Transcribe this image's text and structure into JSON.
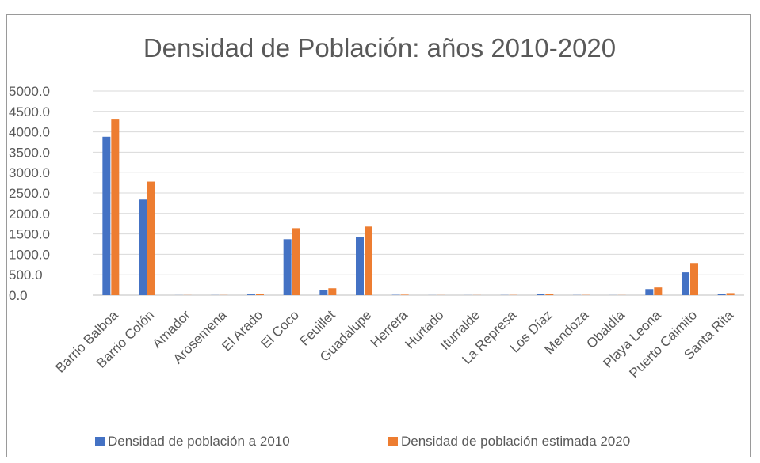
{
  "chart_data": {
    "type": "bar",
    "title": "Densidad de Población: años 2010-2020",
    "xlabel": "",
    "ylabel": "",
    "ylim": [
      0,
      5000
    ],
    "yticks": [
      "0.0",
      "500.0",
      "1000.0",
      "1500.0",
      "2000.0",
      "2500.0",
      "3000.0",
      "3500.0",
      "4000.0",
      "4500.0",
      "5000.0"
    ],
    "grid": true,
    "legend_position": "bottom",
    "categories": [
      "Barrio Balboa",
      "Barrio Colón",
      "Amador",
      "Arosemena",
      "El Arado",
      "El Coco",
      "Feuillet",
      "Guadalupe",
      "Herrera",
      "Hurtado",
      "Iturralde",
      "La Represa",
      "Los Díaz",
      "Mendoza",
      "Obaldía",
      "Playa Leona",
      "Puerto Caimito",
      "Santa Rita"
    ],
    "series": [
      {
        "name": "Densidad de población a 2010",
        "color": "#4472c4",
        "values": [
          3880,
          2340,
          2,
          3,
          18,
          1370,
          130,
          1420,
          8,
          2,
          2,
          4,
          20,
          4,
          2,
          150,
          560,
          35
        ]
      },
      {
        "name": "Densidad de población estimada 2020",
        "color": "#ed7d31",
        "values": [
          4320,
          2780,
          3,
          4,
          25,
          1640,
          170,
          1680,
          12,
          3,
          3,
          6,
          30,
          6,
          3,
          190,
          790,
          50
        ]
      }
    ]
  }
}
